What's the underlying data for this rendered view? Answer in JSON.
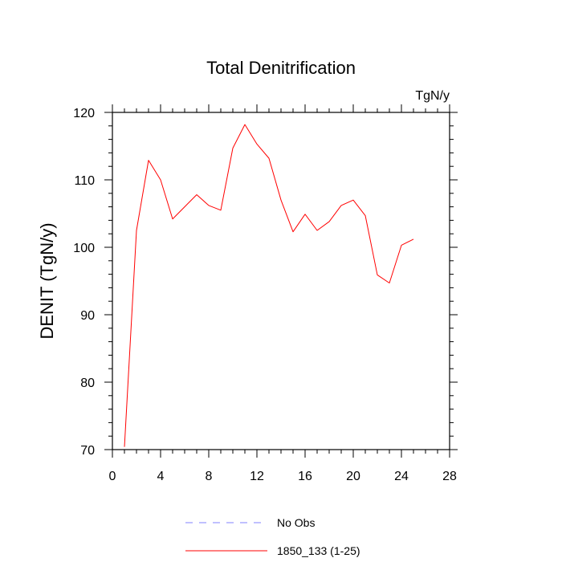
{
  "chart_data": {
    "type": "line",
    "title": "Total Denitrification",
    "units_label": "TgN/y",
    "xlabel": "",
    "ylabel": "DENIT  (TgN/y)",
    "xlim": [
      0,
      28
    ],
    "ylim": [
      70,
      120
    ],
    "x_ticks": [
      0,
      4,
      8,
      12,
      16,
      20,
      24,
      28
    ],
    "y_ticks": [
      70,
      80,
      90,
      100,
      110,
      120
    ],
    "x_minor_step": 1,
    "y_minor_step": 2,
    "grid": false,
    "legend_position": "bottom-center",
    "series": [
      {
        "name": "1850_133 (1-25)",
        "color": "#ff0000",
        "style": "solid",
        "x": [
          1,
          2,
          3,
          4,
          5,
          6,
          7,
          8,
          9,
          10,
          11,
          12,
          13,
          14,
          15,
          16,
          17,
          18,
          19,
          20,
          21,
          22,
          23,
          24,
          25
        ],
        "y": [
          70.4,
          102.5,
          112.9,
          110.0,
          104.2,
          106.0,
          107.8,
          106.2,
          105.5,
          114.7,
          118.2,
          115.3,
          113.2,
          107.0,
          102.3,
          104.9,
          102.5,
          103.8,
          106.2,
          107.0,
          104.7,
          95.9,
          94.7,
          100.3,
          101.2
        ]
      }
    ],
    "legend": [
      {
        "label": "No Obs",
        "color": "#8080ff",
        "style": "dashed"
      },
      {
        "label": "1850_133 (1-25)",
        "color": "#ff0000",
        "style": "solid"
      }
    ]
  }
}
